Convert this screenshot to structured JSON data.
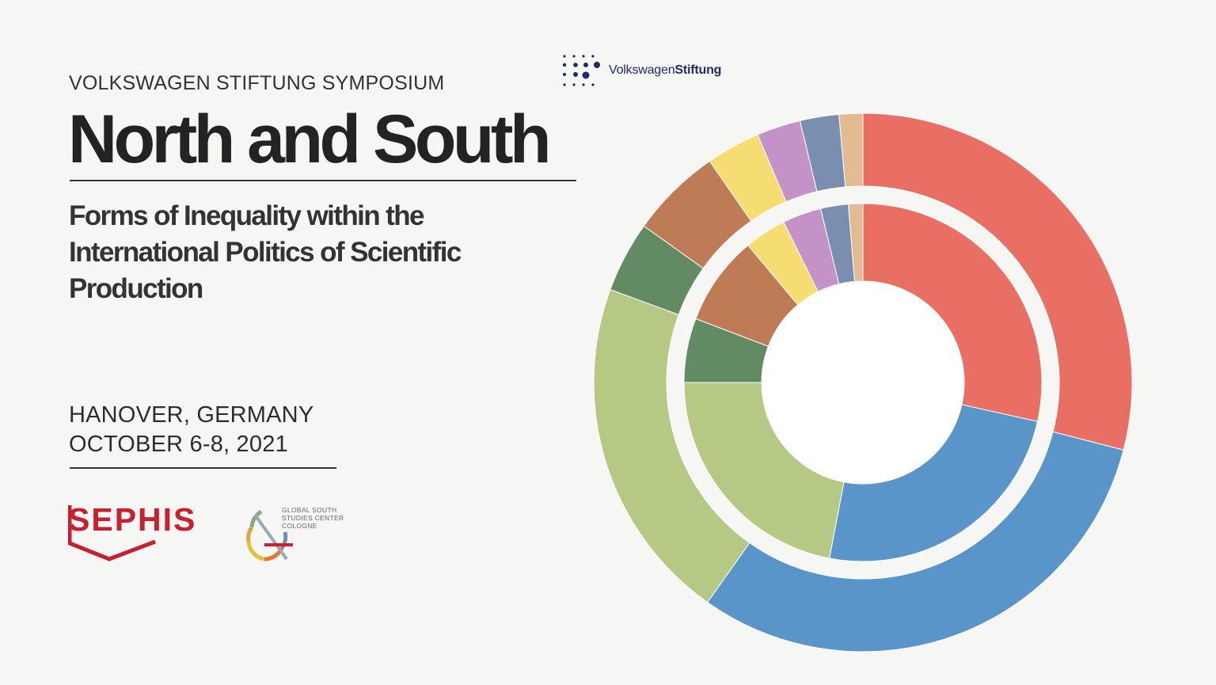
{
  "header": {
    "kicker": "VOLKSWAGEN STIFTUNG SYMPOSIUM",
    "title": "North and South",
    "subtitle": "Forms of Inequality within the International Politics of Scientific Production"
  },
  "event": {
    "location": "HANOVER, GERMANY",
    "date": "OCTOBER 6-8, 2021"
  },
  "logos": {
    "vw_part1": "Volkswagen",
    "vw_part2": "Stiftung",
    "sephis": "SEPHIS",
    "gssc_line1": "GLOBAL SOUTH",
    "gssc_line2": "STUDIES CENTER",
    "gssc_line3": "COLOGNE"
  },
  "colors": {
    "red": "#e96e63",
    "blue": "#5a95c9",
    "light_green": "#b5c985",
    "dark_green": "#628b63",
    "brown": "#bf7a56",
    "yellow": "#f5dd72",
    "lilac": "#c492c6",
    "slate": "#7a8fb0",
    "tan": "#e3bb93",
    "sephis_red": "#c7202f",
    "vw_navy": "#1f2a6b"
  },
  "chart_data": {
    "type": "donut",
    "rings": [
      {
        "ring": "outer",
        "slices": [
          {
            "color": "red",
            "value": 0.286
          },
          {
            "color": "blue",
            "value": 0.303
          },
          {
            "color": "light_green",
            "value": 0.205
          },
          {
            "color": "dark_green",
            "value": 0.042
          },
          {
            "color": "brown",
            "value": 0.054
          },
          {
            "color": "yellow",
            "value": 0.032
          },
          {
            "color": "lilac",
            "value": 0.026
          },
          {
            "color": "slate",
            "value": 0.023
          },
          {
            "color": "tan",
            "value": 0.014
          }
        ]
      },
      {
        "ring": "inner",
        "slices": [
          {
            "color": "red",
            "value": 0.285
          },
          {
            "color": "blue",
            "value": 0.245
          },
          {
            "color": "light_green",
            "value": 0.22
          },
          {
            "color": "dark_green",
            "value": 0.058
          },
          {
            "color": "brown",
            "value": 0.081
          },
          {
            "color": "yellow",
            "value": 0.038
          },
          {
            "color": "lilac",
            "value": 0.035
          },
          {
            "color": "slate",
            "value": 0.025
          },
          {
            "color": "tan",
            "value": 0.013
          }
        ]
      }
    ]
  }
}
